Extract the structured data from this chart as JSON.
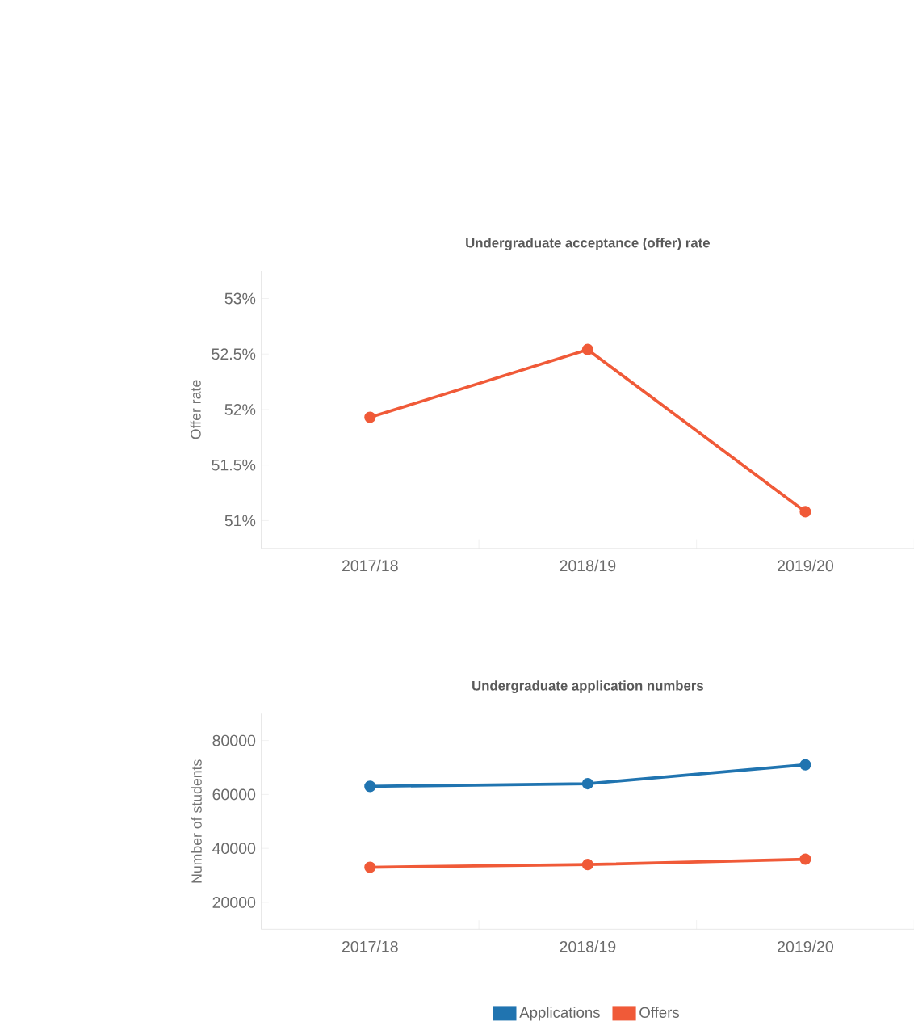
{
  "chart_data": [
    {
      "type": "line",
      "title": "Undergraduate acceptance (offer) rate",
      "ylabel": "Offer rate",
      "categories": [
        "2017/18",
        "2018/19",
        "2019/20"
      ],
      "series": [
        {
          "color": "#f05a38",
          "values": [
            51.93,
            52.54,
            51.08
          ]
        }
      ],
      "ylim": [
        50.75,
        53.25
      ],
      "yticks": [
        {
          "value": 51,
          "label": "51%"
        },
        {
          "value": 51.5,
          "label": "51.5%"
        },
        {
          "value": 52,
          "label": "52%"
        },
        {
          "value": 52.5,
          "label": "52.5%"
        },
        {
          "value": 53,
          "label": "53%"
        }
      ],
      "marker": "circle",
      "grid": false,
      "legend": false
    },
    {
      "type": "line",
      "title": "Undergraduate application numbers",
      "ylabel": "Number of students",
      "categories": [
        "2017/18",
        "2018/19",
        "2019/20"
      ],
      "series": [
        {
          "name": "Applications",
          "color": "#2074b0",
          "values": [
            63000,
            64000,
            71000
          ]
        },
        {
          "name": "Offers",
          "color": "#f05a38",
          "values": [
            33000,
            34000,
            36000
          ]
        }
      ],
      "ylim": [
        10000,
        90000
      ],
      "yticks": [
        20000,
        40000,
        60000,
        80000
      ],
      "marker": "circle",
      "grid": false,
      "legend": "bottom"
    }
  ]
}
